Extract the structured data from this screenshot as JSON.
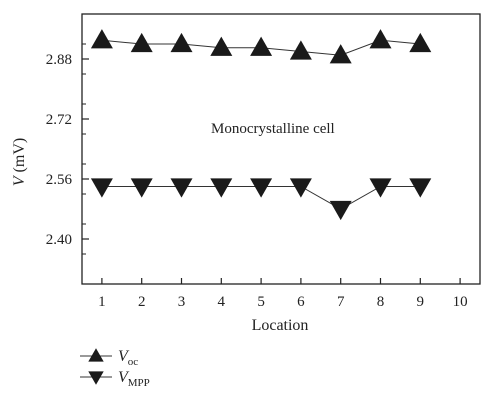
{
  "chart_data": {
    "type": "line",
    "annotation": "Monocrystalline cell",
    "xlabel": "Location",
    "ylabel_symbol": "V",
    "ylabel_unit": " (mV)",
    "xlim": [
      0.5,
      10.5
    ],
    "ylim": [
      2.28,
      3.0
    ],
    "xticks": [
      1,
      2,
      3,
      4,
      5,
      6,
      7,
      8,
      9,
      10
    ],
    "yticks": [
      2.4,
      2.56,
      2.72,
      2.88
    ],
    "ytick_labels": [
      "2.40",
      "2.56",
      "2.72",
      "2.88"
    ],
    "grid": false,
    "legend_placement": "bottom-left, below plot",
    "series": [
      {
        "key": "voc",
        "label_main": "V",
        "label_sub": "oc",
        "marker": "triangle-up",
        "x": [
          1,
          2,
          3,
          4,
          5,
          6,
          7,
          8,
          9
        ],
        "values": [
          2.93,
          2.92,
          2.92,
          2.91,
          2.91,
          2.9,
          2.89,
          2.93,
          2.92
        ]
      },
      {
        "key": "vmpp",
        "label_main": "V",
        "label_sub": "MPP",
        "marker": "triangle-down",
        "x": [
          1,
          2,
          3,
          4,
          5,
          6,
          7,
          8,
          9
        ],
        "values": [
          2.54,
          2.54,
          2.54,
          2.54,
          2.54,
          2.54,
          2.48,
          2.54,
          2.54
        ]
      }
    ],
    "colors": {
      "line": "#333333",
      "marker": "#1a1a1a",
      "axis": "#222222"
    }
  }
}
